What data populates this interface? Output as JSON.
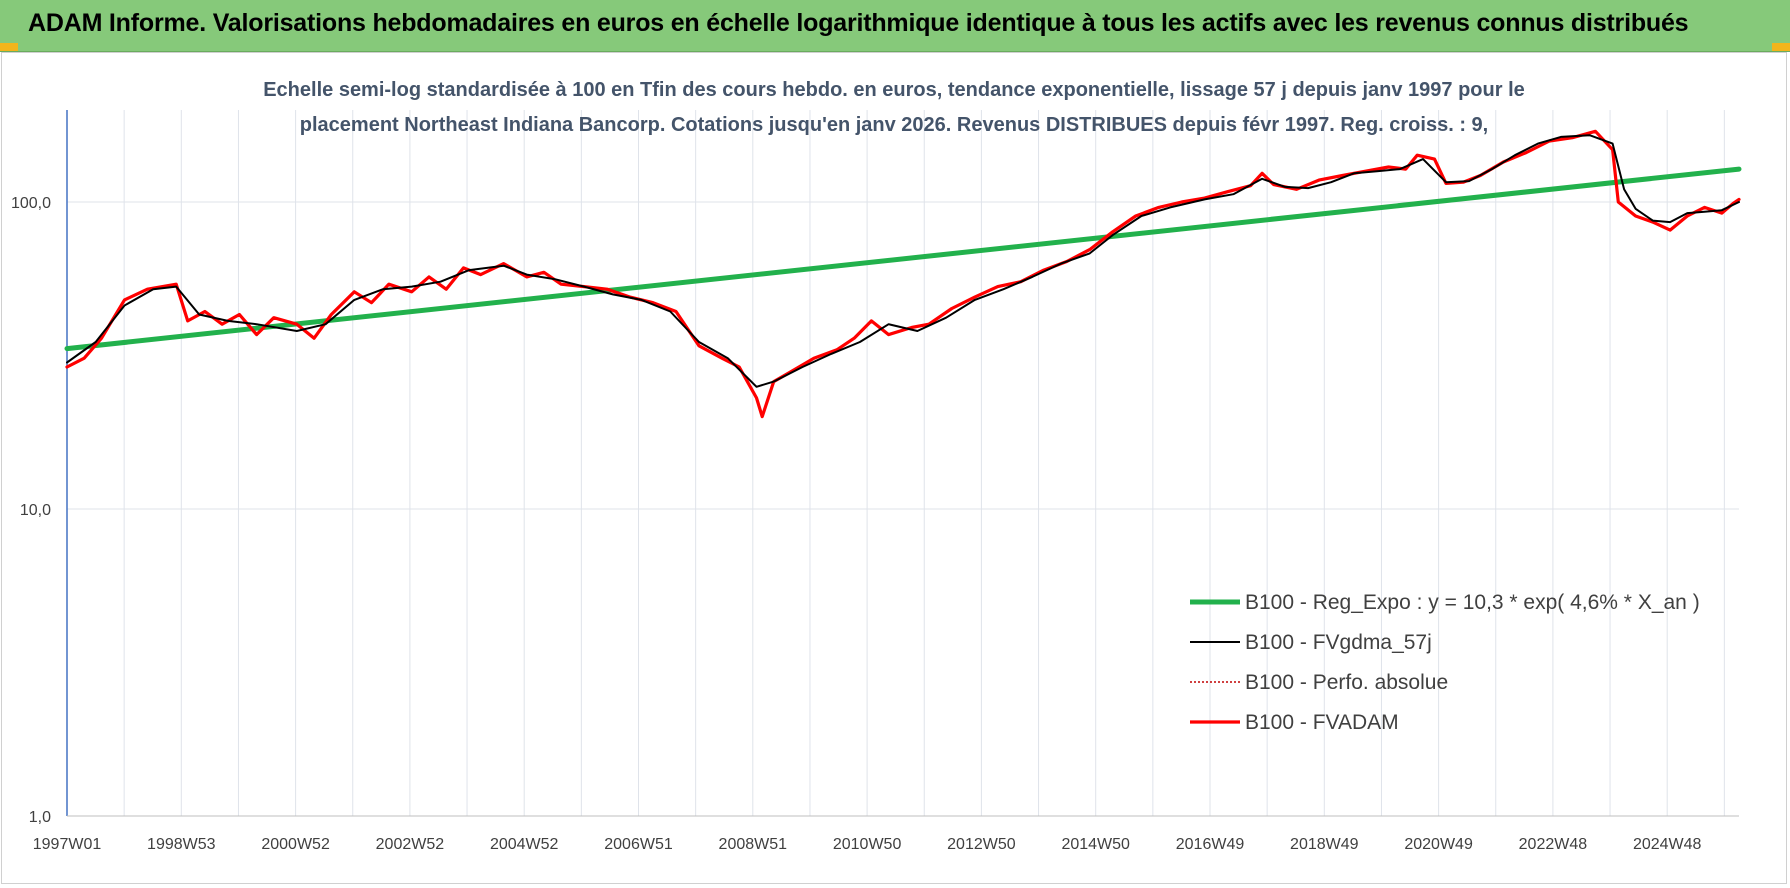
{
  "header": {
    "title": "ADAM Informe. Valorisations hebdomadaires en euros en échelle logarithmique identique à tous les actifs avec les revenus connus distribués"
  },
  "colors": {
    "header_bg": "#86c97a",
    "trend": "#22b14c",
    "smoothed": "#000000",
    "absolute": "#c00000",
    "fvadam": "#ff0000",
    "grid": "#dfe3ea",
    "axis": "#4472c4"
  },
  "chart_data": {
    "type": "line",
    "scale": "log",
    "title_lines": [
      "Echelle semi-log standardisée à 100 en Tfin des cours hebdo. en euros, tendance exponentielle, lissage 57 j depuis janv 1997 pour le",
      "placement Northeast Indiana Bancorp. Cotations jusqu'en janv 2026. Revenus DISTRIBUES depuis févr 1997. Reg. croiss. : 9,"
    ],
    "y_ticks": [
      "1,0",
      "10,0",
      "100,0"
    ],
    "ylim": [
      1,
      200
    ],
    "x_ticks": [
      "1997W01",
      "1998W53",
      "2000W52",
      "2002W52",
      "2004W52",
      "2006W51",
      "2008W51",
      "2010W50",
      "2012W50",
      "2014W50",
      "2016W49",
      "2018W49",
      "2020W49",
      "2022W48",
      "2024W48"
    ],
    "xlim": [
      1997.0,
      2026.1
    ],
    "grid": true,
    "legend_position": "bottom-right",
    "series": [
      {
        "name": "B100 - Reg_Expo : y = 10,3 * exp( 4,6% *  X_an )",
        "style": "trend",
        "points": [
          [
            1997.0,
            33.3
          ],
          [
            2026.1,
            128.0
          ]
        ]
      },
      {
        "name": "B100 - FVgdma_57j",
        "style": "smoothed",
        "points": [
          [
            1997.0,
            30
          ],
          [
            1997.5,
            35
          ],
          [
            1998.0,
            46
          ],
          [
            1998.5,
            52
          ],
          [
            1998.9,
            53
          ],
          [
            1999.3,
            43
          ],
          [
            1999.8,
            41
          ],
          [
            2000.3,
            40
          ],
          [
            2001.0,
            38
          ],
          [
            2001.5,
            40
          ],
          [
            2002.0,
            48
          ],
          [
            2002.5,
            52
          ],
          [
            2003.0,
            53
          ],
          [
            2003.5,
            55
          ],
          [
            2004.0,
            60
          ],
          [
            2004.6,
            62
          ],
          [
            2005.0,
            58
          ],
          [
            2005.5,
            56
          ],
          [
            2006.0,
            53
          ],
          [
            2006.5,
            50
          ],
          [
            2007.0,
            48
          ],
          [
            2007.5,
            44
          ],
          [
            2008.0,
            35
          ],
          [
            2008.5,
            31
          ],
          [
            2009.0,
            25
          ],
          [
            2009.3,
            26
          ],
          [
            2009.8,
            29
          ],
          [
            2010.3,
            32
          ],
          [
            2010.8,
            35
          ],
          [
            2011.3,
            40
          ],
          [
            2011.8,
            38
          ],
          [
            2012.3,
            42
          ],
          [
            2012.8,
            48
          ],
          [
            2013.3,
            52
          ],
          [
            2013.8,
            57
          ],
          [
            2014.3,
            63
          ],
          [
            2014.8,
            68
          ],
          [
            2015.2,
            78
          ],
          [
            2015.7,
            90
          ],
          [
            2016.2,
            96
          ],
          [
            2016.8,
            102
          ],
          [
            2017.3,
            106
          ],
          [
            2017.8,
            119
          ],
          [
            2018.2,
            112
          ],
          [
            2018.6,
            111
          ],
          [
            2019.0,
            116
          ],
          [
            2019.4,
            124
          ],
          [
            2019.8,
            126
          ],
          [
            2020.2,
            128
          ],
          [
            2020.6,
            138
          ],
          [
            2021.0,
            116
          ],
          [
            2021.4,
            117
          ],
          [
            2021.8,
            128
          ],
          [
            2022.2,
            142
          ],
          [
            2022.6,
            155
          ],
          [
            2023.0,
            163
          ],
          [
            2023.5,
            165
          ],
          [
            2023.9,
            155
          ],
          [
            2024.1,
            110
          ],
          [
            2024.3,
            95
          ],
          [
            2024.6,
            87
          ],
          [
            2024.9,
            86
          ],
          [
            2025.2,
            92
          ],
          [
            2025.5,
            93
          ],
          [
            2025.8,
            94
          ],
          [
            2026.1,
            100
          ]
        ]
      },
      {
        "name": "B100 - Perfo. absolue",
        "style": "absolute",
        "points": []
      },
      {
        "name": "B100 - FVADAM",
        "style": "fvadam",
        "points": [
          [
            1997.0,
            29
          ],
          [
            1997.3,
            31
          ],
          [
            1997.6,
            36
          ],
          [
            1998.0,
            48
          ],
          [
            1998.4,
            52
          ],
          [
            1998.9,
            54
          ],
          [
            1999.1,
            41
          ],
          [
            1999.4,
            44
          ],
          [
            1999.7,
            40
          ],
          [
            2000.0,
            43
          ],
          [
            2000.3,
            37
          ],
          [
            2000.6,
            42
          ],
          [
            2001.0,
            40
          ],
          [
            2001.3,
            36
          ],
          [
            2001.6,
            43
          ],
          [
            2002.0,
            51
          ],
          [
            2002.3,
            47
          ],
          [
            2002.6,
            54
          ],
          [
            2003.0,
            51
          ],
          [
            2003.3,
            57
          ],
          [
            2003.6,
            52
          ],
          [
            2003.9,
            61
          ],
          [
            2004.2,
            58
          ],
          [
            2004.6,
            63
          ],
          [
            2005.0,
            57
          ],
          [
            2005.3,
            59
          ],
          [
            2005.6,
            54
          ],
          [
            2006.0,
            53
          ],
          [
            2006.4,
            52
          ],
          [
            2006.8,
            49
          ],
          [
            2007.2,
            47
          ],
          [
            2007.6,
            44
          ],
          [
            2008.0,
            34
          ],
          [
            2008.4,
            31
          ],
          [
            2008.7,
            29
          ],
          [
            2009.0,
            23
          ],
          [
            2009.1,
            20
          ],
          [
            2009.3,
            26
          ],
          [
            2009.6,
            28
          ],
          [
            2010.0,
            31
          ],
          [
            2010.4,
            33
          ],
          [
            2010.7,
            36
          ],
          [
            2011.0,
            41
          ],
          [
            2011.3,
            37
          ],
          [
            2011.7,
            39
          ],
          [
            2012.0,
            40
          ],
          [
            2012.4,
            45
          ],
          [
            2012.8,
            49
          ],
          [
            2013.2,
            53
          ],
          [
            2013.6,
            55
          ],
          [
            2014.0,
            60
          ],
          [
            2014.4,
            64
          ],
          [
            2014.8,
            70
          ],
          [
            2015.2,
            80
          ],
          [
            2015.6,
            90
          ],
          [
            2016.0,
            96
          ],
          [
            2016.4,
            100
          ],
          [
            2016.8,
            103
          ],
          [
            2017.2,
            108
          ],
          [
            2017.6,
            113
          ],
          [
            2017.8,
            124
          ],
          [
            2018.0,
            114
          ],
          [
            2018.4,
            110
          ],
          [
            2018.8,
            118
          ],
          [
            2019.2,
            122
          ],
          [
            2019.6,
            126
          ],
          [
            2020.0,
            130
          ],
          [
            2020.3,
            128
          ],
          [
            2020.5,
            142
          ],
          [
            2020.8,
            138
          ],
          [
            2021.0,
            115
          ],
          [
            2021.3,
            116
          ],
          [
            2021.6,
            122
          ],
          [
            2022.0,
            135
          ],
          [
            2022.4,
            145
          ],
          [
            2022.8,
            158
          ],
          [
            2023.2,
            162
          ],
          [
            2023.6,
            170
          ],
          [
            2023.9,
            148
          ],
          [
            2024.0,
            100
          ],
          [
            2024.3,
            90
          ],
          [
            2024.6,
            86
          ],
          [
            2024.9,
            81
          ],
          [
            2025.2,
            90
          ],
          [
            2025.5,
            96
          ],
          [
            2025.8,
            92
          ],
          [
            2026.0,
            99
          ],
          [
            2026.1,
            102
          ]
        ]
      }
    ]
  }
}
